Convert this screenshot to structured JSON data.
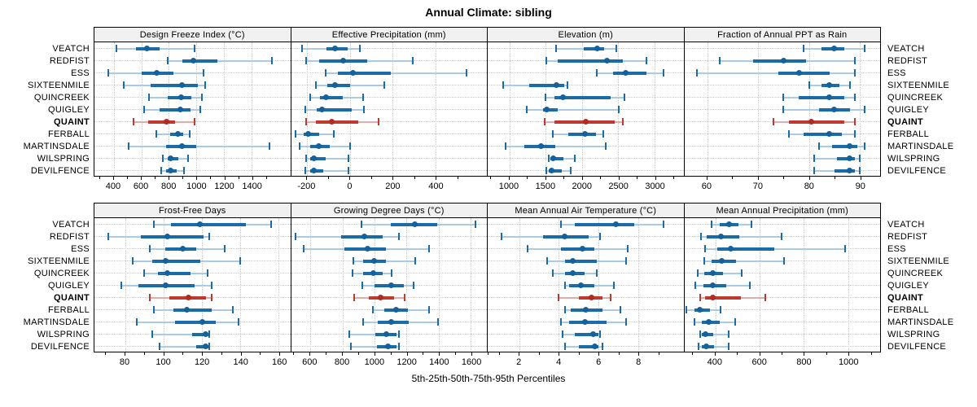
{
  "title": "Annual Climate: sibling",
  "caption": "5th-25th-50th-75th-95th Percentiles",
  "highlight": "QUAINT",
  "sites": [
    "VEATCH",
    "REDFIST",
    "ESS",
    "SIXTEENMILE",
    "QUINCREEK",
    "QUIGLEY",
    "QUAINT",
    "FERBALL",
    "MARTINSDALE",
    "WILSPRING",
    "DEVILFENCE"
  ],
  "percentile_labels": [
    "5th",
    "25th",
    "50th",
    "75th",
    "95th"
  ],
  "colors": {
    "series": "#1b6ba7",
    "series_light": "#a9cbe3",
    "series_dot": "#14619c",
    "highlight": "#bf392f",
    "highlight_light": "#e4aca7",
    "highlight_dot": "#ad2d22",
    "grid": "#c9c9c9",
    "strip_bg": "#f0f0f0",
    "border": "#000000"
  },
  "chart_data": [
    {
      "type": "dotplot-interval",
      "row": "top",
      "title": "Design Freeze Index (°C)",
      "xlim": [
        260,
        1680
      ],
      "ticks": [
        400,
        600,
        800,
        1000,
        1200,
        1400
      ],
      "values": [
        [
          420,
          560,
          640,
          730,
          985
        ],
        [
          790,
          900,
          975,
          1150,
          1550
        ],
        [
          360,
          600,
          710,
          830,
          1050
        ],
        [
          475,
          665,
          895,
          1010,
          1065
        ],
        [
          655,
          790,
          890,
          965,
          1040
        ],
        [
          620,
          730,
          880,
          955,
          1025
        ],
        [
          545,
          650,
          785,
          845,
          985
        ],
        [
          710,
          810,
          865,
          905,
          950
        ],
        [
          510,
          780,
          895,
          1000,
          1530
        ],
        [
          755,
          790,
          815,
          870,
          940
        ],
        [
          745,
          780,
          810,
          855,
          910
        ]
      ]
    },
    {
      "type": "dotplot-interval",
      "row": "top",
      "title": "Effective Precipitation (mm)",
      "xlim": [
        -275,
        640
      ],
      "ticks": [
        -200,
        0,
        200,
        400
      ],
      "values": [
        [
          -225,
          -110,
          -70,
          -10,
          45
        ],
        [
          -205,
          -145,
          -30,
          80,
          295
        ],
        [
          -115,
          -55,
          15,
          190,
          545
        ],
        [
          -160,
          -105,
          -70,
          0,
          160
        ],
        [
          -185,
          -140,
          -110,
          -35,
          60
        ],
        [
          -210,
          -155,
          -130,
          10,
          65
        ],
        [
          -205,
          -160,
          -85,
          40,
          135
        ],
        [
          -255,
          -215,
          -195,
          -145,
          -75
        ],
        [
          -235,
          -185,
          -145,
          -95,
          0
        ],
        [
          -205,
          -185,
          -170,
          -115,
          -5
        ],
        [
          -210,
          -185,
          -170,
          -125,
          -5
        ]
      ]
    },
    {
      "type": "dotplot-interval",
      "row": "top",
      "title": "Elevation (m)",
      "xlim": [
        700,
        3400
      ],
      "ticks": [
        1000,
        1500,
        2000,
        2500,
        3000
      ],
      "values": [
        [
          1640,
          2030,
          2210,
          2300,
          2470
        ],
        [
          1510,
          1660,
          2340,
          2560,
          2890
        ],
        [
          2200,
          2430,
          2600,
          2890,
          3130
        ],
        [
          910,
          1270,
          1650,
          1760,
          1800
        ],
        [
          1500,
          1620,
          1740,
          2390,
          2590
        ],
        [
          1240,
          1460,
          1510,
          1670,
          2510
        ],
        [
          1490,
          1620,
          2050,
          2450,
          2560
        ],
        [
          1600,
          1810,
          2040,
          2190,
          2290
        ],
        [
          950,
          1200,
          1440,
          1630,
          2330
        ],
        [
          1540,
          1560,
          1600,
          1740,
          1900
        ],
        [
          1510,
          1540,
          1580,
          1720,
          1840
        ]
      ]
    },
    {
      "type": "dotplot-interval",
      "row": "top",
      "title": "Fraction of Annual PPT as Rain",
      "xlim": [
        55.5,
        94
      ],
      "ticks": [
        60,
        70,
        80,
        90
      ],
      "values": [
        [
          79,
          82.5,
          85,
          87,
          91
        ],
        [
          62.5,
          69,
          75,
          79.5,
          89
        ],
        [
          58,
          74,
          78,
          84,
          89
        ],
        [
          80,
          82.5,
          84,
          86,
          88
        ],
        [
          75,
          78,
          84,
          87,
          89
        ],
        [
          75,
          82,
          85,
          88,
          91
        ],
        [
          73,
          76,
          80.5,
          87,
          89
        ],
        [
          76,
          79,
          84,
          86.5,
          89
        ],
        [
          82,
          84.5,
          88,
          89.5,
          91
        ],
        [
          81,
          85.5,
          88,
          89,
          90
        ],
        [
          81,
          85,
          88,
          89,
          90
        ]
      ]
    },
    {
      "type": "dotplot-interval",
      "row": "bottom",
      "title": "Frost-Free Days",
      "xlim": [
        64,
        166
      ],
      "ticks": [
        80,
        100,
        120,
        140,
        160
      ],
      "values": [
        [
          95,
          104,
          119,
          143,
          156
        ],
        [
          71,
          88,
          102,
          121,
          124
        ],
        [
          93,
          101,
          110,
          117,
          132
        ],
        [
          84,
          94,
          101,
          119,
          140
        ],
        [
          90,
          97,
          102,
          114,
          123
        ],
        [
          78,
          87,
          101,
          116,
          125
        ],
        [
          93,
          103,
          113,
          122,
          125
        ],
        [
          95,
          105,
          112,
          125,
          136
        ],
        [
          86,
          106,
          120,
          127,
          139
        ],
        [
          94,
          115,
          122,
          124,
          124
        ],
        [
          98,
          117,
          122,
          124,
          124
        ]
      ]
    },
    {
      "type": "dotplot-interval",
      "row": "bottom",
      "title": "Growing Degree Days (°C)",
      "xlim": [
        480,
        1700
      ],
      "ticks": [
        600,
        800,
        1000,
        1200,
        1400,
        1600
      ],
      "values": [
        [
          920,
          1100,
          1250,
          1390,
          1630
        ],
        [
          510,
          790,
          935,
          1050,
          1150
        ],
        [
          560,
          810,
          955,
          1070,
          1340
        ],
        [
          870,
          930,
          995,
          1070,
          1255
        ],
        [
          865,
          930,
          990,
          1050,
          1105
        ],
        [
          925,
          1000,
          1105,
          1185,
          1245
        ],
        [
          875,
          965,
          1040,
          1120,
          1190
        ],
        [
          990,
          1060,
          1135,
          1210,
          1340
        ],
        [
          930,
          1020,
          1105,
          1215,
          1395
        ],
        [
          845,
          1005,
          1075,
          1135,
          1150
        ],
        [
          855,
          1015,
          1085,
          1135,
          1150
        ]
      ]
    },
    {
      "type": "dotplot-interval",
      "row": "bottom",
      "title": "Mean Annual Air Temperature (°C)",
      "xlim": [
        0.4,
        10.3
      ],
      "ticks": [
        2,
        4,
        6,
        8
      ],
      "values": [
        [
          4.1,
          4.8,
          6.9,
          7.8,
          9.3
        ],
        [
          1.1,
          3.2,
          4.3,
          5.5,
          6.1
        ],
        [
          2.4,
          4.1,
          5.2,
          5.8,
          7.5
        ],
        [
          3.4,
          4.3,
          4.7,
          5.9,
          7.4
        ],
        [
          3.7,
          4.3,
          4.7,
          5.3,
          5.9
        ],
        [
          4.3,
          4.5,
          5.1,
          5.8,
          6.8
        ],
        [
          4.0,
          5.0,
          5.65,
          6.2,
          6.6
        ],
        [
          4.3,
          4.6,
          5.35,
          6.2,
          7.1
        ],
        [
          4.1,
          4.5,
          5.3,
          6.4,
          7.4
        ],
        [
          4.2,
          4.8,
          5.75,
          6.0,
          6.1
        ],
        [
          4.3,
          5.0,
          5.8,
          6.0,
          6.2
        ]
      ]
    },
    {
      "type": "dotplot-interval",
      "row": "bottom",
      "title": "Mean Annual Precipitation (mm)",
      "xlim": [
        260,
        1145
      ],
      "ticks": [
        400,
        600,
        800,
        1000
      ],
      "values": [
        [
          385,
          420,
          462,
          505,
          565
        ],
        [
          335,
          360,
          425,
          510,
          700
        ],
        [
          355,
          410,
          470,
          665,
          985
        ],
        [
          350,
          385,
          428,
          495,
          710
        ],
        [
          320,
          350,
          390,
          435,
          520
        ],
        [
          310,
          345,
          390,
          450,
          555
        ],
        [
          330,
          355,
          390,
          515,
          625
        ],
        [
          270,
          305,
          330,
          375,
          425
        ],
        [
          305,
          340,
          370,
          420,
          490
        ],
        [
          330,
          340,
          355,
          390,
          460
        ],
        [
          325,
          340,
          360,
          395,
          460
        ]
      ]
    }
  ]
}
